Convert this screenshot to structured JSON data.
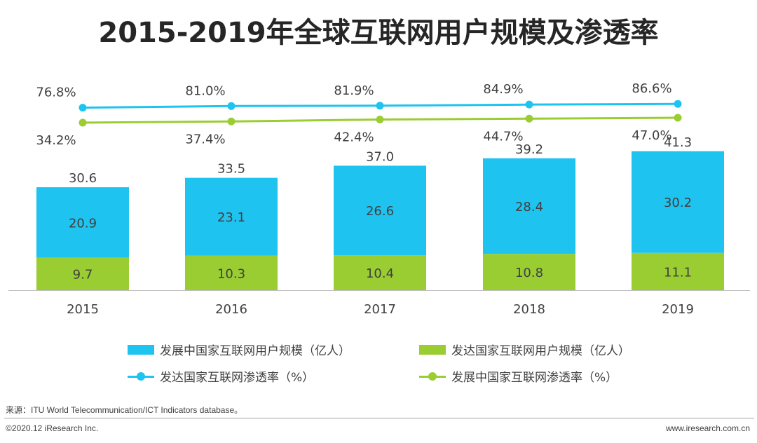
{
  "title": "2015-2019年全球互联网用户规模及渗透率",
  "colors": {
    "developing_bar": "#1fc3ef",
    "developed_bar": "#9acd32",
    "developed_line": "#1fc3ef",
    "developing_line": "#9acd32"
  },
  "chart_data": {
    "type": "bar",
    "categories": [
      "2015",
      "2016",
      "2017",
      "2018",
      "2019"
    ],
    "stacked": true,
    "series": [
      {
        "name": "发达国家互联网用户规模（亿人）",
        "type": "bar",
        "values": [
          9.7,
          10.3,
          10.4,
          10.8,
          11.1
        ]
      },
      {
        "name": "发展中国家互联网用户规模（亿人）",
        "type": "bar",
        "values": [
          20.9,
          23.1,
          26.6,
          28.4,
          30.2
        ]
      },
      {
        "name": "发达国家互联网渗透率（%）",
        "type": "line",
        "values": [
          76.8,
          81.0,
          81.9,
          84.9,
          86.6
        ],
        "labels": [
          "76.8%",
          "81.0%",
          "81.9%",
          "84.9%",
          "86.6%"
        ]
      },
      {
        "name": "发展中国家互联网渗透率（%）",
        "type": "line",
        "values": [
          34.2,
          37.4,
          42.4,
          44.7,
          47.0
        ],
        "labels": [
          "34.2%",
          "37.4%",
          "42.4%",
          "44.7%",
          "47.0%"
        ]
      }
    ],
    "totals": [
      "30.6",
      "33.5",
      "37.0",
      "39.2",
      "41.3"
    ],
    "total_values": [
      30.6,
      33.5,
      37.0,
      39.2,
      41.3
    ],
    "bar_labels_developing": [
      "20.9",
      "23.1",
      "26.6",
      "28.4",
      "30.2"
    ],
    "bar_labels_developed": [
      "9.7",
      "10.3",
      "10.4",
      "10.8",
      "11.1"
    ],
    "grid": false
  },
  "legend": {
    "developing_bar": "发展中国家互联网用户规模（亿人）",
    "developed_bar": "发达国家互联网用户规模（亿人）",
    "developed_line": "发达国家互联网渗透率（%）",
    "developing_line": "发展中国家互联网渗透率（%）"
  },
  "footer": {
    "source": "来源：ITU World Telecommunication/ICT Indicators database。",
    "copyright": "©2020.12 iResearch Inc.",
    "website": "www.iresearch.com.cn"
  }
}
